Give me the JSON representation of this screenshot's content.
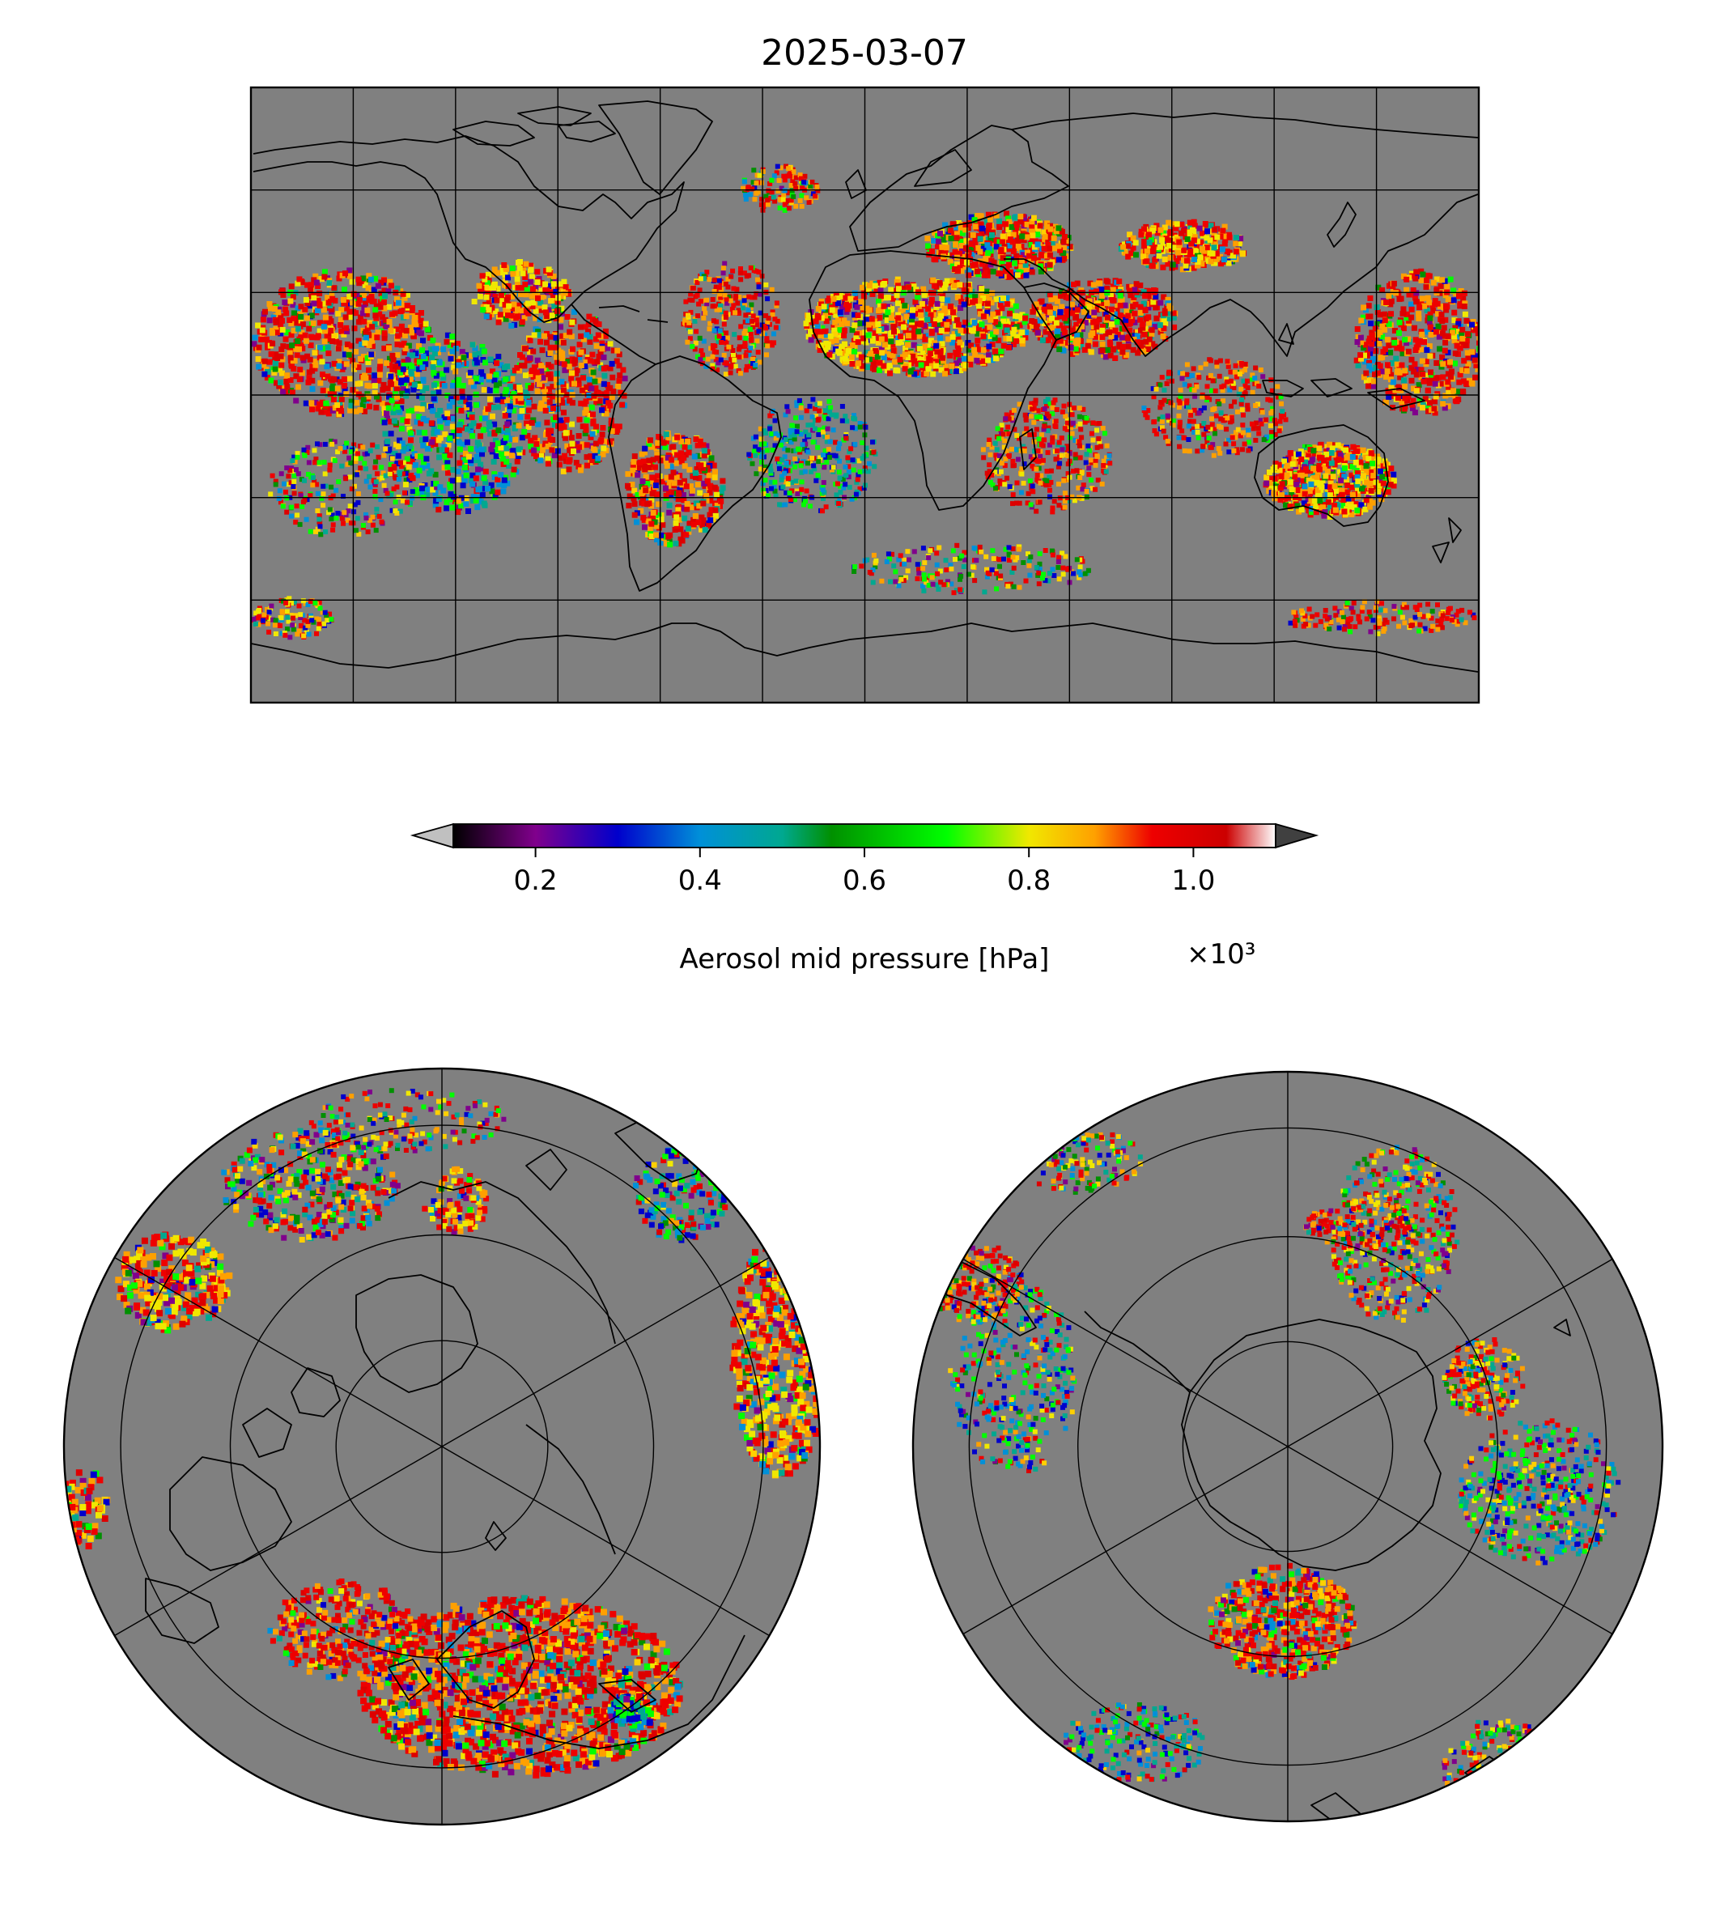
{
  "title": "2025-03-07",
  "colorbar": {
    "label": "Aerosol mid pressure [hPa]",
    "offset_text": "×10³",
    "ticks": [
      "0.2",
      "0.4",
      "0.6",
      "0.8",
      "1.0"
    ],
    "tick_values": [
      0.2,
      0.4,
      0.6,
      0.8,
      1.0
    ],
    "range": [
      0.1,
      1.1
    ],
    "extend": "both",
    "under_color": "#c0c0c0",
    "over_color": "#404040",
    "colormap_stops": [
      {
        "v": 0.1,
        "c": "#000000"
      },
      {
        "v": 0.2,
        "c": "#80008c"
      },
      {
        "v": 0.3,
        "c": "#0000cc"
      },
      {
        "v": 0.4,
        "c": "#0090d8"
      },
      {
        "v": 0.5,
        "c": "#00a890"
      },
      {
        "v": 0.56,
        "c": "#009000"
      },
      {
        "v": 0.7,
        "c": "#00ff00"
      },
      {
        "v": 0.8,
        "c": "#f0e800"
      },
      {
        "v": 0.88,
        "c": "#ffa000"
      },
      {
        "v": 0.95,
        "c": "#ee0000"
      },
      {
        "v": 1.04,
        "c": "#cc0000"
      },
      {
        "v": 1.1,
        "c": "#ffffff"
      }
    ]
  },
  "maps": {
    "background_color": "#808080",
    "global": {
      "projection": "plate-carree",
      "grid_spacing_deg": 30
    },
    "north_polar": {
      "projection": "north-polar-stereographic"
    },
    "south_polar": {
      "projection": "south-polar-stereographic"
    }
  }
}
